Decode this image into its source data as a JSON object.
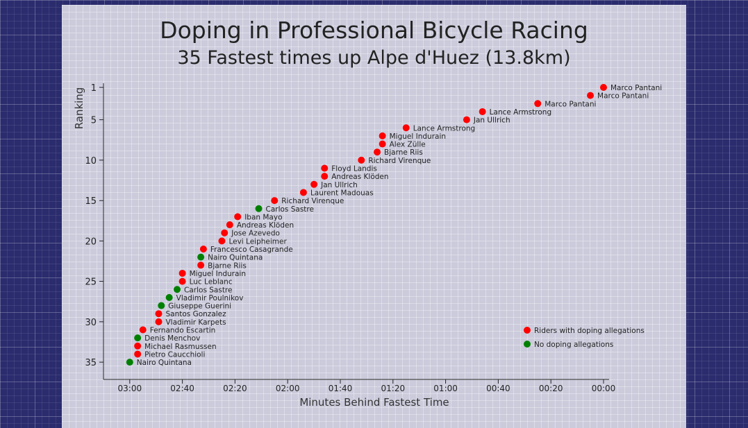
{
  "chart_data": {
    "type": "scatter",
    "title": "Doping in Professional Bicycle Racing",
    "subtitle": "35 Fastest times up Alpe d'Huez (13.8km)",
    "xlabel": "Minutes Behind Fastest Time",
    "ylabel": "Ranking",
    "xlim": [
      195,
      0
    ],
    "ylim": [
      1,
      37
    ],
    "x_ticks": [
      {
        "value": 180,
        "label": "03:00"
      },
      {
        "value": 160,
        "label": "02:40"
      },
      {
        "value": 140,
        "label": "02:20"
      },
      {
        "value": 120,
        "label": "02:00"
      },
      {
        "value": 100,
        "label": "01:40"
      },
      {
        "value": 80,
        "label": "01:20"
      },
      {
        "value": 60,
        "label": "01:00"
      },
      {
        "value": 40,
        "label": "00:40"
      },
      {
        "value": 20,
        "label": "00:20"
      },
      {
        "value": 0,
        "label": "00:00"
      }
    ],
    "y_ticks": [
      1,
      5,
      10,
      15,
      20,
      25,
      30,
      35
    ],
    "colors": {
      "doping": "#ff0000",
      "clean": "#008000"
    },
    "legend": {
      "position": "bottom-right",
      "entries": [
        {
          "label": "Riders with doping allegations",
          "key": "doping"
        },
        {
          "label": "No doping allegations",
          "key": "clean"
        }
      ]
    },
    "points": [
      {
        "rank": 1,
        "seconds": 0,
        "name": "Marco Pantani",
        "doping": true
      },
      {
        "rank": 2,
        "seconds": 5,
        "name": "Marco Pantani",
        "doping": true
      },
      {
        "rank": 3,
        "seconds": 25,
        "name": "Marco Pantani",
        "doping": true
      },
      {
        "rank": 4,
        "seconds": 46,
        "name": "Lance Armstrong",
        "doping": true
      },
      {
        "rank": 5,
        "seconds": 52,
        "name": "Jan Ullrich",
        "doping": true
      },
      {
        "rank": 6,
        "seconds": 75,
        "name": "Lance Armstrong",
        "doping": true
      },
      {
        "rank": 7,
        "seconds": 84,
        "name": "Miguel Indurain",
        "doping": true
      },
      {
        "rank": 8,
        "seconds": 84,
        "name": "Alex Zülle",
        "doping": true
      },
      {
        "rank": 9,
        "seconds": 86,
        "name": "Bjarne Riis",
        "doping": true
      },
      {
        "rank": 10,
        "seconds": 92,
        "name": "Richard Virenque",
        "doping": true
      },
      {
        "rank": 11,
        "seconds": 106,
        "name": "Floyd Landis",
        "doping": true
      },
      {
        "rank": 12,
        "seconds": 106,
        "name": "Andreas Klöden",
        "doping": true
      },
      {
        "rank": 13,
        "seconds": 110,
        "name": "Jan Ullrich",
        "doping": true
      },
      {
        "rank": 14,
        "seconds": 114,
        "name": "Laurent Madouas",
        "doping": true
      },
      {
        "rank": 15,
        "seconds": 125,
        "name": "Richard Virenque",
        "doping": true
      },
      {
        "rank": 16,
        "seconds": 131,
        "name": "Carlos Sastre",
        "doping": false
      },
      {
        "rank": 17,
        "seconds": 139,
        "name": "Iban Mayo",
        "doping": true
      },
      {
        "rank": 18,
        "seconds": 142,
        "name": "Andreas Klöden",
        "doping": true
      },
      {
        "rank": 19,
        "seconds": 144,
        "name": "Jose Azevedo",
        "doping": true
      },
      {
        "rank": 20,
        "seconds": 145,
        "name": "Levi Leipheimer",
        "doping": true
      },
      {
        "rank": 21,
        "seconds": 152,
        "name": "Francesco Casagrande",
        "doping": true
      },
      {
        "rank": 22,
        "seconds": 153,
        "name": "Nairo Quintana",
        "doping": false
      },
      {
        "rank": 23,
        "seconds": 153,
        "name": "Bjarne Riis",
        "doping": true
      },
      {
        "rank": 24,
        "seconds": 160,
        "name": "Miguel Indurain",
        "doping": true
      },
      {
        "rank": 25,
        "seconds": 160,
        "name": "Luc Leblanc",
        "doping": true
      },
      {
        "rank": 26,
        "seconds": 162,
        "name": "Carlos Sastre",
        "doping": false
      },
      {
        "rank": 27,
        "seconds": 165,
        "name": "Vladimir Poulnikov",
        "doping": false
      },
      {
        "rank": 28,
        "seconds": 168,
        "name": "Giuseppe Guerini",
        "doping": false
      },
      {
        "rank": 29,
        "seconds": 169,
        "name": "Santos Gonzalez",
        "doping": true
      },
      {
        "rank": 30,
        "seconds": 169,
        "name": "Vladimir Karpets",
        "doping": true
      },
      {
        "rank": 31,
        "seconds": 175,
        "name": "Fernando Escartin",
        "doping": true
      },
      {
        "rank": 32,
        "seconds": 177,
        "name": "Denis Menchov",
        "doping": false
      },
      {
        "rank": 33,
        "seconds": 177,
        "name": "Michael Rasmussen",
        "doping": true
      },
      {
        "rank": 34,
        "seconds": 177,
        "name": "Pietro Caucchioli",
        "doping": true
      },
      {
        "rank": 35,
        "seconds": 180,
        "name": "Nairo Quintana",
        "doping": false
      }
    ]
  }
}
